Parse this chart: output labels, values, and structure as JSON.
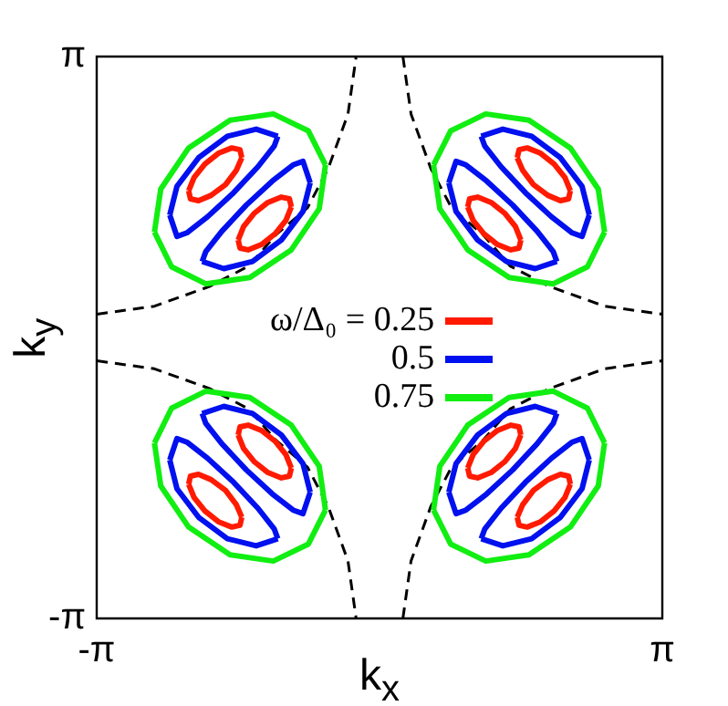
{
  "chart_data": {
    "type": "line",
    "xlabel": "k$_{x}$",
    "ylabel": "k$_{y}$",
    "xlim": [
      -3.1416,
      3.1416
    ],
    "ylim": [
      -3.1416,
      3.1416
    ],
    "xticks": [
      {
        "value": -3.1416,
        "label": "-π"
      },
      {
        "value": 3.1416,
        "label": "π"
      }
    ],
    "yticks": [
      {
        "value": -3.1416,
        "label": "-π"
      },
      {
        "value": 3.1416,
        "label": "π"
      }
    ],
    "legend": "center",
    "marker": "none",
    "series": [
      {
        "name": "ω/Δ₀ = 0.25",
        "color": "#ff1a00",
        "x": [
          1.53,
          1.55,
          1.64,
          1.79,
          1.94,
          2.06,
          2.12
        ],
        "values": [
          2.01,
          2.1,
          2.12,
          2.06,
          1.94,
          1.79,
          1.64
        ]
      },
      {
        "color": "#ff1a00",
        "x": [
          1.53,
          1.59,
          1.71,
          1.87,
          2.01,
          2.1,
          2.12
        ],
        "values": [
          2.01,
          1.87,
          1.71,
          1.59,
          1.53,
          1.55,
          1.64
        ]
      },
      {
        "color": "#ff1a00",
        "x": [
          0.98,
          1.04,
          1.16,
          1.31,
          1.46,
          1.55,
          1.57
        ],
        "values": [
          1.46,
          1.31,
          1.16,
          1.04,
          0.98,
          1,
          1.09
        ]
      },
      {
        "color": "#ff1a00",
        "x": [
          0.98,
          1,
          1.09,
          1.24,
          1.39,
          1.51,
          1.57
        ],
        "values": [
          1.46,
          1.55,
          1.57,
          1.51,
          1.39,
          1.24,
          1.09
        ]
      },
      {
        "color": "#ff1a00",
        "x": [
          -2.12,
          -2.06,
          -1.94,
          -1.79,
          -1.64,
          -1.55,
          -1.53
        ],
        "values": [
          1.64,
          1.79,
          1.94,
          2.06,
          2.12,
          2.1,
          2.01
        ]
      },
      {
        "color": "#ff1a00",
        "x": [
          -2.12,
          -2.1,
          -2.01,
          -1.87,
          -1.71,
          -1.59,
          -1.53
        ],
        "values": [
          1.64,
          1.55,
          1.53,
          1.59,
          1.71,
          1.87,
          2.01
        ]
      },
      {
        "color": "#ff1a00",
        "x": [
          -1.57,
          -1.55,
          -1.46,
          -1.31,
          -1.16,
          -1.04,
          -0.98
        ],
        "values": [
          1.09,
          1,
          0.98,
          1.04,
          1.16,
          1.31,
          1.46
        ]
      },
      {
        "color": "#ff1a00",
        "x": [
          -1.57,
          -1.51,
          -1.39,
          -1.24,
          -1.09,
          -1,
          -0.98
        ],
        "values": [
          1.09,
          1.24,
          1.39,
          1.51,
          1.57,
          1.55,
          1.46
        ]
      },
      {
        "color": "#ff1a00",
        "x": [
          1.53,
          1.55,
          1.64,
          1.79,
          1.94,
          2.06,
          2.12
        ],
        "values": [
          -2.01,
          -2.1,
          -2.12,
          -2.06,
          -1.94,
          -1.79,
          -1.64
        ]
      },
      {
        "color": "#ff1a00",
        "x": [
          1.53,
          1.59,
          1.71,
          1.87,
          2.01,
          2.1,
          2.12
        ],
        "values": [
          -2.01,
          -1.87,
          -1.71,
          -1.59,
          -1.53,
          -1.55,
          -1.64
        ]
      },
      {
        "color": "#ff1a00",
        "x": [
          0.98,
          1.04,
          1.16,
          1.31,
          1.46,
          1.55,
          1.57
        ],
        "values": [
          -1.46,
          -1.31,
          -1.16,
          -1.04,
          -0.98,
          -1,
          -1.09
        ]
      },
      {
        "color": "#ff1a00",
        "x": [
          0.98,
          1,
          1.09,
          1.24,
          1.39,
          1.51,
          1.57
        ],
        "values": [
          -1.46,
          -1.55,
          -1.57,
          -1.51,
          -1.39,
          -1.24,
          -1.09
        ]
      },
      {
        "color": "#ff1a00",
        "x": [
          -2.12,
          -2.06,
          -1.94,
          -1.79,
          -1.64,
          -1.55,
          -1.53
        ],
        "values": [
          -1.64,
          -1.79,
          -1.94,
          -2.06,
          -2.12,
          -2.1,
          -2.01
        ]
      },
      {
        "color": "#ff1a00",
        "x": [
          -2.12,
          -2.1,
          -2.01,
          -1.87,
          -1.71,
          -1.59,
          -1.53
        ],
        "values": [
          -1.64,
          -1.55,
          -1.53,
          -1.59,
          -1.71,
          -1.87,
          -2.01
        ]
      },
      {
        "color": "#ff1a00",
        "x": [
          -1.57,
          -1.55,
          -1.46,
          -1.31,
          -1.16,
          -1.04,
          -0.98
        ],
        "values": [
          -1.09,
          -1,
          -0.98,
          -1.04,
          -1.16,
          -1.31,
          -1.46
        ]
      },
      {
        "color": "#ff1a00",
        "x": [
          -1.57,
          -1.51,
          -1.39,
          -1.24,
          -1.09,
          -1,
          -0.98
        ],
        "values": [
          -1.09,
          -1.24,
          -1.39,
          -1.51,
          -1.57,
          -1.55,
          -1.46
        ]
      },
      {
        "name": "0.5",
        "color": "#0010ee",
        "x": [
          1.13,
          1.37,
          1.69,
          2.01,
          2.25,
          2.33
        ],
        "values": [
          2.25,
          2.33,
          2.25,
          2.01,
          1.69,
          1.37
        ]
      },
      {
        "color": "#0010ee",
        "x": [
          1.13,
          1.17,
          1.35,
          1.62,
          1.91,
          2.14,
          2.25,
          2.33
        ],
        "values": [
          2.25,
          2.14,
          1.91,
          1.62,
          1.35,
          1.17,
          1.13,
          1.37
        ]
      },
      {
        "color": "#0010ee",
        "x": [
          0.77,
          0.85,
          1.09,
          1.41,
          1.73,
          1.97
        ],
        "values": [
          1.73,
          1.41,
          1.09,
          0.85,
          0.77,
          0.85
        ]
      },
      {
        "color": "#0010ee",
        "x": [
          0.77,
          0.85,
          0.96,
          1.19,
          1.48,
          1.75,
          1.93,
          1.97
        ],
        "values": [
          1.73,
          1.97,
          1.93,
          1.75,
          1.48,
          1.19,
          0.96,
          0.85
        ]
      },
      {
        "color": "#0010ee",
        "x": [
          -2.33,
          -2.25,
          -2.01,
          -1.69,
          -1.37,
          -1.13
        ],
        "values": [
          1.37,
          1.69,
          2.01,
          2.25,
          2.33,
          2.25
        ]
      },
      {
        "color": "#0010ee",
        "x": [
          -2.33,
          -2.25,
          -2.14,
          -1.91,
          -1.62,
          -1.35,
          -1.17,
          -1.13
        ],
        "values": [
          1.37,
          1.13,
          1.17,
          1.35,
          1.62,
          1.91,
          2.14,
          2.25
        ]
      },
      {
        "color": "#0010ee",
        "x": [
          -1.97,
          -1.73,
          -1.41,
          -1.09,
          -0.85,
          -0.77
        ],
        "values": [
          0.85,
          0.77,
          0.85,
          1.09,
          1.41,
          1.73
        ]
      },
      {
        "color": "#0010ee",
        "x": [
          -1.97,
          -1.93,
          -1.75,
          -1.48,
          -1.19,
          -0.96,
          -0.85,
          -0.77
        ],
        "values": [
          0.85,
          0.96,
          1.19,
          1.48,
          1.75,
          1.93,
          1.97,
          1.73
        ]
      },
      {
        "color": "#0010ee",
        "x": [
          1.13,
          1.37,
          1.69,
          2.01,
          2.25,
          2.33
        ],
        "values": [
          -2.25,
          -2.33,
          -2.25,
          -2.01,
          -1.69,
          -1.37
        ]
      },
      {
        "color": "#0010ee",
        "x": [
          1.13,
          1.17,
          1.35,
          1.62,
          1.91,
          2.14,
          2.25,
          2.33
        ],
        "values": [
          -2.25,
          -2.14,
          -1.91,
          -1.62,
          -1.35,
          -1.17,
          -1.13,
          -1.37
        ]
      },
      {
        "color": "#0010ee",
        "x": [
          0.77,
          0.85,
          1.09,
          1.41,
          1.73,
          1.97
        ],
        "values": [
          -1.73,
          -1.41,
          -1.09,
          -0.85,
          -0.77,
          -0.85
        ]
      },
      {
        "color": "#0010ee",
        "x": [
          0.77,
          0.85,
          0.96,
          1.19,
          1.48,
          1.75,
          1.93,
          1.97
        ],
        "values": [
          -1.73,
          -1.97,
          -1.93,
          -1.75,
          -1.48,
          -1.19,
          -0.96,
          -0.85
        ]
      },
      {
        "color": "#0010ee",
        "x": [
          -2.33,
          -2.25,
          -2.01,
          -1.69,
          -1.37,
          -1.13
        ],
        "values": [
          -1.37,
          -1.69,
          -2.01,
          -2.25,
          -2.33,
          -2.25
        ]
      },
      {
        "color": "#0010ee",
        "x": [
          -2.33,
          -2.25,
          -2.14,
          -1.91,
          -1.62,
          -1.35,
          -1.17,
          -1.13
        ],
        "values": [
          -1.37,
          -1.13,
          -1.17,
          -1.35,
          -1.62,
          -1.91,
          -2.14,
          -2.25
        ]
      },
      {
        "color": "#0010ee",
        "x": [
          -1.97,
          -1.73,
          -1.41,
          -1.09,
          -0.85,
          -0.77
        ],
        "values": [
          -0.85,
          -0.77,
          -0.85,
          -1.09,
          -1.41,
          -1.73
        ]
      },
      {
        "color": "#0010ee",
        "x": [
          -1.97,
          -1.93,
          -1.75,
          -1.48,
          -1.19,
          -0.96,
          -0.85,
          -0.77
        ],
        "values": [
          -0.85,
          -0.96,
          -1.19,
          -1.48,
          -1.75,
          -1.93,
          -1.97,
          -1.73
        ]
      },
      {
        "name": "0.75",
        "color": "#11ee11",
        "x": [
          0.6,
          0.79,
          1.18,
          1.66,
          2.12,
          2.43,
          2.5
        ],
        "values": [
          1.93,
          2.31,
          2.5,
          2.43,
          2.12,
          1.66,
          1.18
        ]
      },
      {
        "color": "#11ee11",
        "x": [
          0.6,
          0.67,
          0.98,
          1.44,
          1.93,
          2.31,
          2.5
        ],
        "values": [
          1.93,
          1.44,
          0.98,
          0.67,
          0.6,
          0.79,
          1.18
        ]
      },
      {
        "color": "#11ee11",
        "x": [
          -2.5,
          -2.43,
          -2.12,
          -1.66,
          -1.18,
          -0.79,
          -0.6
        ],
        "values": [
          1.18,
          1.66,
          2.12,
          2.43,
          2.5,
          2.31,
          1.93
        ]
      },
      {
        "color": "#11ee11",
        "x": [
          -2.5,
          -2.31,
          -1.93,
          -1.44,
          -0.98,
          -0.67,
          -0.6
        ],
        "values": [
          1.18,
          0.79,
          0.6,
          0.67,
          0.98,
          1.44,
          1.93
        ]
      },
      {
        "color": "#11ee11",
        "x": [
          0.6,
          0.79,
          1.18,
          1.66,
          2.12,
          2.43,
          2.5
        ],
        "values": [
          -1.93,
          -2.31,
          -2.5,
          -2.43,
          -2.12,
          -1.66,
          -1.18
        ]
      },
      {
        "color": "#11ee11",
        "x": [
          0.6,
          0.67,
          0.98,
          1.44,
          1.93,
          2.31,
          2.5
        ],
        "values": [
          -1.93,
          -1.44,
          -0.98,
          -0.67,
          -0.6,
          -0.79,
          -1.18
        ]
      },
      {
        "color": "#11ee11",
        "x": [
          -2.5,
          -2.43,
          -2.12,
          -1.66,
          -1.18,
          -0.79,
          -0.6
        ],
        "values": [
          -1.18,
          -1.66,
          -2.12,
          -2.43,
          -2.5,
          -2.31,
          -1.93
        ]
      },
      {
        "color": "#11ee11",
        "x": [
          -2.5,
          -2.31,
          -1.93,
          -1.44,
          -0.98,
          -0.67,
          -0.6
        ],
        "values": [
          -1.18,
          -0.79,
          -0.6,
          -0.67,
          -0.98,
          -1.44,
          -1.93
        ]
      },
      {
        "color": "#000000",
        "line_style": "dashed",
        "x": [
          0.26,
          0.35,
          0.57,
          0.8,
          1.15,
          1.45,
          1.89,
          2.5,
          3.14
        ],
        "values": [
          3.14,
          2.5,
          1.89,
          1.45,
          1.15,
          0.8,
          0.57,
          0.35,
          0.26
        ]
      },
      {
        "color": "#000000",
        "line_style": "dashed",
        "x": [
          -3.14,
          -2.5,
          -1.89,
          -1.45,
          -1.15,
          -0.8,
          -0.57,
          -0.35,
          -0.26
        ],
        "values": [
          0.26,
          0.35,
          0.57,
          0.8,
          1.15,
          1.45,
          1.89,
          2.5,
          3.14
        ]
      },
      {
        "color": "#000000",
        "line_style": "dashed",
        "x": [
          0.26,
          0.35,
          0.57,
          0.8,
          1.15,
          1.45,
          1.89,
          2.5,
          3.14
        ],
        "values": [
          -3.14,
          -2.5,
          -1.89,
          -1.45,
          -1.15,
          -0.8,
          -0.57,
          -0.35,
          -0.26
        ]
      },
      {
        "color": "#000000",
        "line_style": "dashed",
        "x": [
          -3.14,
          -2.5,
          -1.89,
          -1.45,
          -1.15,
          -0.8,
          -0.57,
          -0.35,
          -0.26
        ],
        "values": [
          -0.26,
          -0.35,
          -0.57,
          -0.8,
          -1.15,
          -1.45,
          -1.89,
          -2.5,
          -3.14
        ]
      }
    ]
  }
}
